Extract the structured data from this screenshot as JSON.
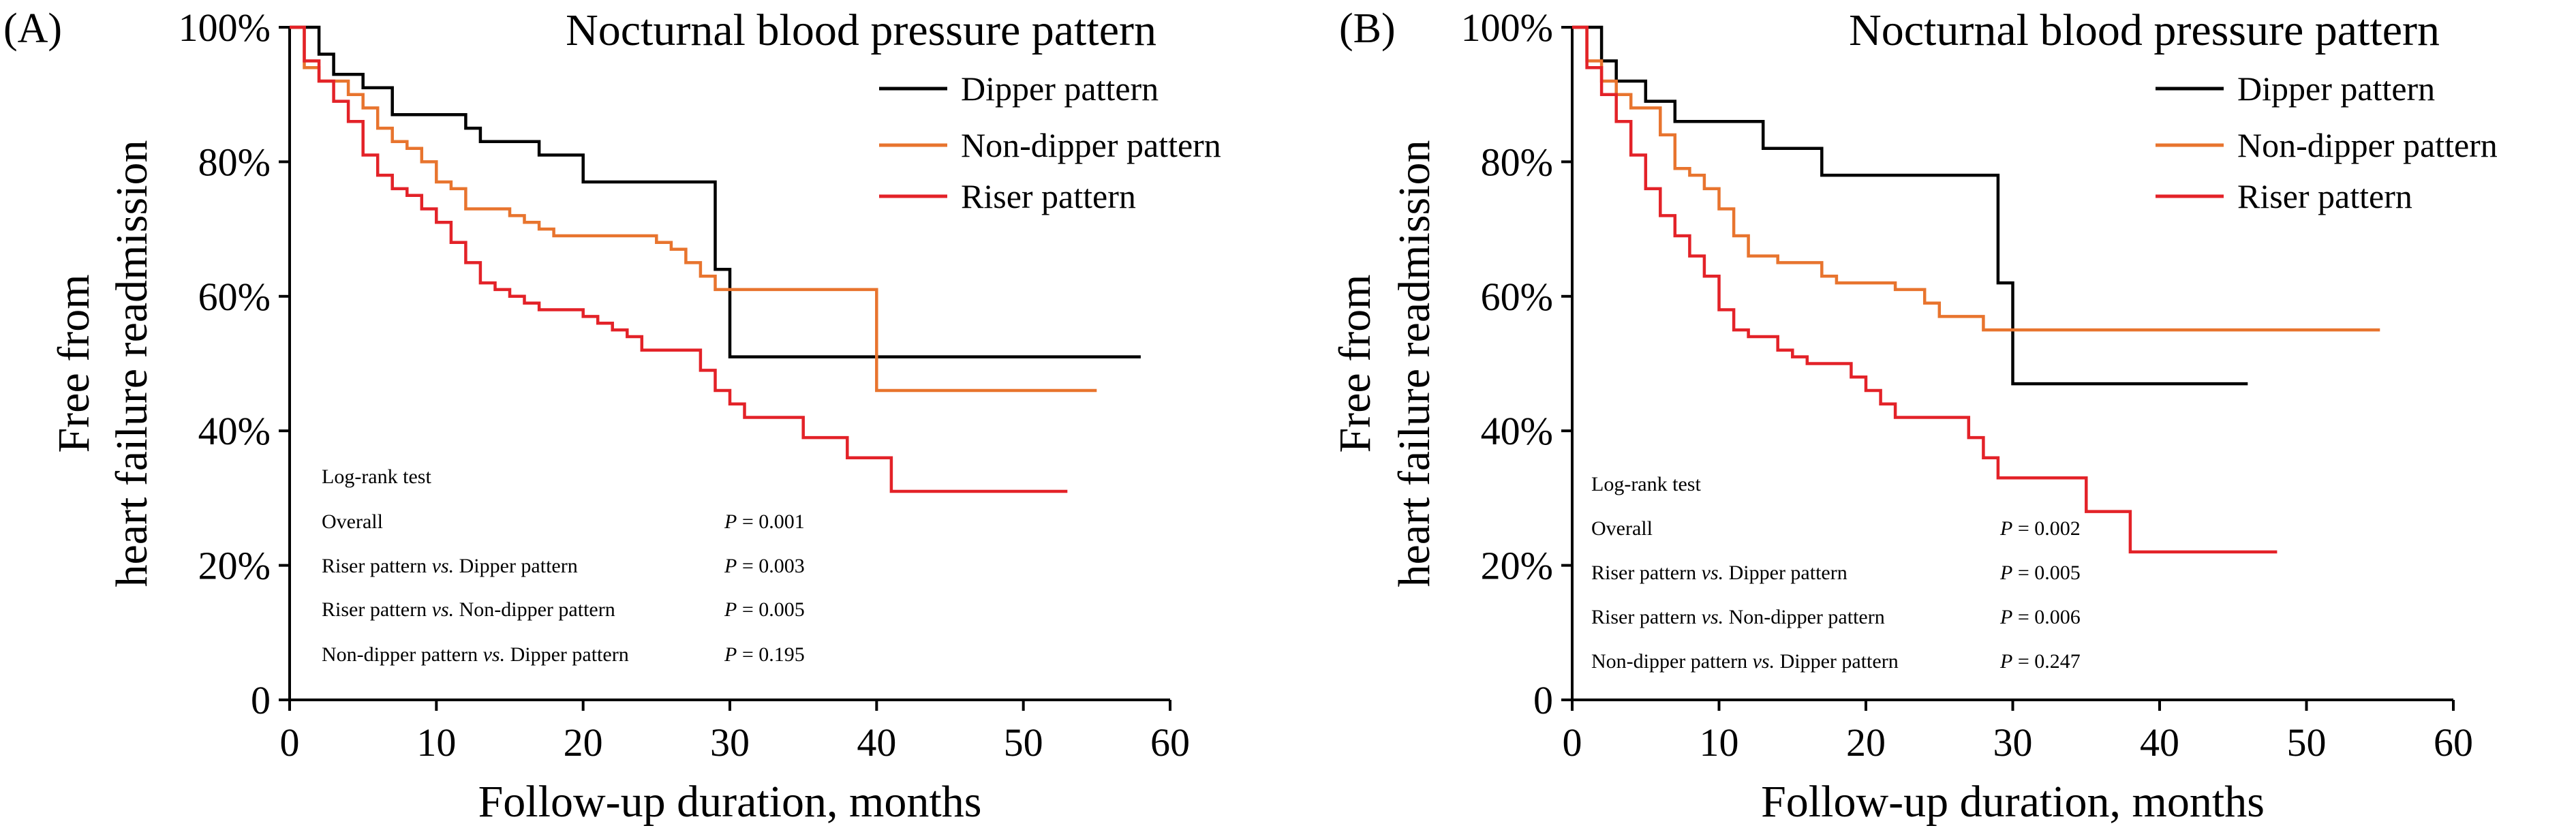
{
  "chart_data": [
    {
      "type": "line",
      "step": true,
      "panel": "(A)",
      "title": "Nocturnal blood pressure pattern",
      "xlabel": "Follow-up duration, months",
      "ylabel_lines": [
        "Free from",
        "heart failure readmission"
      ],
      "xlim": [
        0,
        60
      ],
      "ylim": [
        0,
        100
      ],
      "xticks": [
        "0",
        "10",
        "20",
        "30",
        "40",
        "50",
        "60"
      ],
      "yticks": [
        "0",
        "20%",
        "40%",
        "60%",
        "80%",
        "100%"
      ],
      "grid": false,
      "legend_position": "top-right",
      "series": [
        {
          "name": "Dipper pattern",
          "color": "#000000",
          "points": [
            [
              0,
              100
            ],
            [
              2,
              100
            ],
            [
              2,
              96
            ],
            [
              3,
              96
            ],
            [
              3,
              93
            ],
            [
              5,
              93
            ],
            [
              5,
              91
            ],
            [
              7,
              91
            ],
            [
              7,
              87
            ],
            [
              12,
              87
            ],
            [
              12,
              85
            ],
            [
              13,
              85
            ],
            [
              13,
              83
            ],
            [
              17,
              83
            ],
            [
              17,
              81
            ],
            [
              20,
              81
            ],
            [
              20,
              77
            ],
            [
              29,
              77
            ],
            [
              29,
              64
            ],
            [
              30,
              64
            ],
            [
              30,
              51
            ],
            [
              58,
              51
            ]
          ]
        },
        {
          "name": "Non-dipper pattern",
          "color": "#E8742E",
          "points": [
            [
              0,
              100
            ],
            [
              1,
              100
            ],
            [
              1,
              94
            ],
            [
              2,
              94
            ],
            [
              2,
              92
            ],
            [
              4,
              92
            ],
            [
              4,
              90
            ],
            [
              5,
              90
            ],
            [
              5,
              88
            ],
            [
              6,
              88
            ],
            [
              6,
              85
            ],
            [
              7,
              85
            ],
            [
              7,
              83
            ],
            [
              8,
              83
            ],
            [
              8,
              82
            ],
            [
              9,
              82
            ],
            [
              9,
              80
            ],
            [
              10,
              80
            ],
            [
              10,
              77
            ],
            [
              11,
              77
            ],
            [
              11,
              76
            ],
            [
              12,
              76
            ],
            [
              12,
              73
            ],
            [
              15,
              73
            ],
            [
              15,
              72
            ],
            [
              16,
              72
            ],
            [
              16,
              71
            ],
            [
              17,
              71
            ],
            [
              17,
              70
            ],
            [
              18,
              70
            ],
            [
              18,
              69
            ],
            [
              25,
              69
            ],
            [
              25,
              68
            ],
            [
              26,
              68
            ],
            [
              26,
              67
            ],
            [
              27,
              67
            ],
            [
              27,
              65
            ],
            [
              28,
              65
            ],
            [
              28,
              63
            ],
            [
              29,
              63
            ],
            [
              29,
              61
            ],
            [
              40,
              61
            ],
            [
              40,
              46
            ],
            [
              55,
              46
            ]
          ]
        },
        {
          "name": "Riser pattern",
          "color": "#E32228",
          "points": [
            [
              0,
              100
            ],
            [
              1,
              100
            ],
            [
              1,
              95
            ],
            [
              2,
              95
            ],
            [
              2,
              92
            ],
            [
              3,
              92
            ],
            [
              3,
              89
            ],
            [
              4,
              89
            ],
            [
              4,
              86
            ],
            [
              5,
              86
            ],
            [
              5,
              81
            ],
            [
              6,
              81
            ],
            [
              6,
              78
            ],
            [
              7,
              78
            ],
            [
              7,
              76
            ],
            [
              8,
              76
            ],
            [
              8,
              75
            ],
            [
              9,
              75
            ],
            [
              9,
              73
            ],
            [
              10,
              73
            ],
            [
              10,
              71
            ],
            [
              11,
              71
            ],
            [
              11,
              68
            ],
            [
              12,
              68
            ],
            [
              12,
              65
            ],
            [
              13,
              65
            ],
            [
              13,
              62
            ],
            [
              14,
              62
            ],
            [
              14,
              61
            ],
            [
              15,
              61
            ],
            [
              15,
              60
            ],
            [
              16,
              60
            ],
            [
              16,
              59
            ],
            [
              17,
              59
            ],
            [
              17,
              58
            ],
            [
              20,
              58
            ],
            [
              20,
              57
            ],
            [
              21,
              57
            ],
            [
              21,
              56
            ],
            [
              22,
              56
            ],
            [
              22,
              55
            ],
            [
              23,
              55
            ],
            [
              23,
              54
            ],
            [
              24,
              54
            ],
            [
              24,
              52
            ],
            [
              28,
              52
            ],
            [
              28,
              49
            ],
            [
              29,
              49
            ],
            [
              29,
              46
            ],
            [
              30,
              46
            ],
            [
              30,
              44
            ],
            [
              31,
              44
            ],
            [
              31,
              42
            ],
            [
              35,
              42
            ],
            [
              35,
              39
            ],
            [
              38,
              39
            ],
            [
              38,
              36
            ],
            [
              41,
              36
            ],
            [
              41,
              31
            ],
            [
              53,
              31
            ]
          ]
        }
      ],
      "stats": {
        "heading": "Log-rank test",
        "rows": [
          {
            "label": "Overall",
            "p": "= 0.001"
          },
          {
            "label": "Riser pattern vs. Dipper pattern",
            "p": "= 0.003"
          },
          {
            "label": "Riser pattern vs. Non-dipper pattern",
            "p": "= 0.005"
          },
          {
            "label": "Non-dipper pattern vs. Dipper pattern",
            "p": "= 0.195"
          }
        ]
      }
    },
    {
      "type": "line",
      "step": true,
      "panel": "(B)",
      "title": "Nocturnal blood pressure pattern",
      "xlabel": "Follow-up duration, months",
      "ylabel_lines": [
        "Free from",
        "heart failure readmission"
      ],
      "xlim": [
        0,
        60
      ],
      "ylim": [
        0,
        100
      ],
      "xticks": [
        "0",
        "10",
        "20",
        "30",
        "40",
        "50",
        "60"
      ],
      "yticks": [
        "0",
        "20%",
        "40%",
        "60%",
        "80%",
        "100%"
      ],
      "grid": false,
      "legend_position": "top-right",
      "series": [
        {
          "name": "Dipper pattern",
          "color": "#000000",
          "points": [
            [
              0,
              100
            ],
            [
              2,
              100
            ],
            [
              2,
              95
            ],
            [
              3,
              95
            ],
            [
              3,
              92
            ],
            [
              5,
              92
            ],
            [
              5,
              89
            ],
            [
              7,
              89
            ],
            [
              7,
              86
            ],
            [
              13,
              86
            ],
            [
              13,
              82
            ],
            [
              17,
              82
            ],
            [
              17,
              78
            ],
            [
              29,
              78
            ],
            [
              29,
              62
            ],
            [
              30,
              62
            ],
            [
              30,
              47
            ],
            [
              46,
              47
            ]
          ]
        },
        {
          "name": "Non-dipper pattern",
          "color": "#E8742E",
          "points": [
            [
              0,
              100
            ],
            [
              1,
              100
            ],
            [
              1,
              95
            ],
            [
              2,
              95
            ],
            [
              2,
              92
            ],
            [
              3,
              92
            ],
            [
              3,
              90
            ],
            [
              4,
              90
            ],
            [
              4,
              88
            ],
            [
              6,
              88
            ],
            [
              6,
              84
            ],
            [
              7,
              84
            ],
            [
              7,
              79
            ],
            [
              8,
              79
            ],
            [
              8,
              78
            ],
            [
              9,
              78
            ],
            [
              9,
              76
            ],
            [
              10,
              76
            ],
            [
              10,
              73
            ],
            [
              11,
              73
            ],
            [
              11,
              69
            ],
            [
              12,
              69
            ],
            [
              12,
              66
            ],
            [
              14,
              66
            ],
            [
              14,
              65
            ],
            [
              17,
              65
            ],
            [
              17,
              63
            ],
            [
              18,
              63
            ],
            [
              18,
              62
            ],
            [
              22,
              62
            ],
            [
              22,
              61
            ],
            [
              24,
              61
            ],
            [
              24,
              59
            ],
            [
              25,
              59
            ],
            [
              25,
              57
            ],
            [
              28,
              57
            ],
            [
              28,
              55
            ],
            [
              55,
              55
            ]
          ]
        },
        {
          "name": "Riser pattern",
          "color": "#E32228",
          "points": [
            [
              0,
              100
            ],
            [
              1,
              100
            ],
            [
              1,
              94
            ],
            [
              2,
              94
            ],
            [
              2,
              90
            ],
            [
              3,
              90
            ],
            [
              3,
              86
            ],
            [
              4,
              86
            ],
            [
              4,
              81
            ],
            [
              5,
              81
            ],
            [
              5,
              76
            ],
            [
              6,
              76
            ],
            [
              6,
              72
            ],
            [
              7,
              72
            ],
            [
              7,
              69
            ],
            [
              8,
              69
            ],
            [
              8,
              66
            ],
            [
              9,
              66
            ],
            [
              9,
              63
            ],
            [
              10,
              63
            ],
            [
              10,
              58
            ],
            [
              11,
              58
            ],
            [
              11,
              55
            ],
            [
              12,
              55
            ],
            [
              12,
              54
            ],
            [
              14,
              54
            ],
            [
              14,
              52
            ],
            [
              15,
              52
            ],
            [
              15,
              51
            ],
            [
              16,
              51
            ],
            [
              16,
              50
            ],
            [
              19,
              50
            ],
            [
              19,
              48
            ],
            [
              20,
              48
            ],
            [
              20,
              46
            ],
            [
              21,
              46
            ],
            [
              21,
              44
            ],
            [
              22,
              44
            ],
            [
              22,
              42
            ],
            [
              27,
              42
            ],
            [
              27,
              39
            ],
            [
              28,
              39
            ],
            [
              28,
              36
            ],
            [
              29,
              36
            ],
            [
              29,
              33
            ],
            [
              35,
              33
            ],
            [
              35,
              28
            ],
            [
              38,
              28
            ],
            [
              38,
              22
            ],
            [
              48,
              22
            ]
          ]
        }
      ],
      "stats": {
        "heading": "Log-rank test",
        "rows": [
          {
            "label": "Overall",
            "p": "= 0.002"
          },
          {
            "label": "Riser pattern vs. Dipper pattern",
            "p": "= 0.005"
          },
          {
            "label": "Riser pattern vs. Non-dipper pattern",
            "p": "= 0.006"
          },
          {
            "label": "Non-dipper pattern vs. Dipper pattern",
            "p": "= 0.247"
          }
        ]
      }
    }
  ]
}
